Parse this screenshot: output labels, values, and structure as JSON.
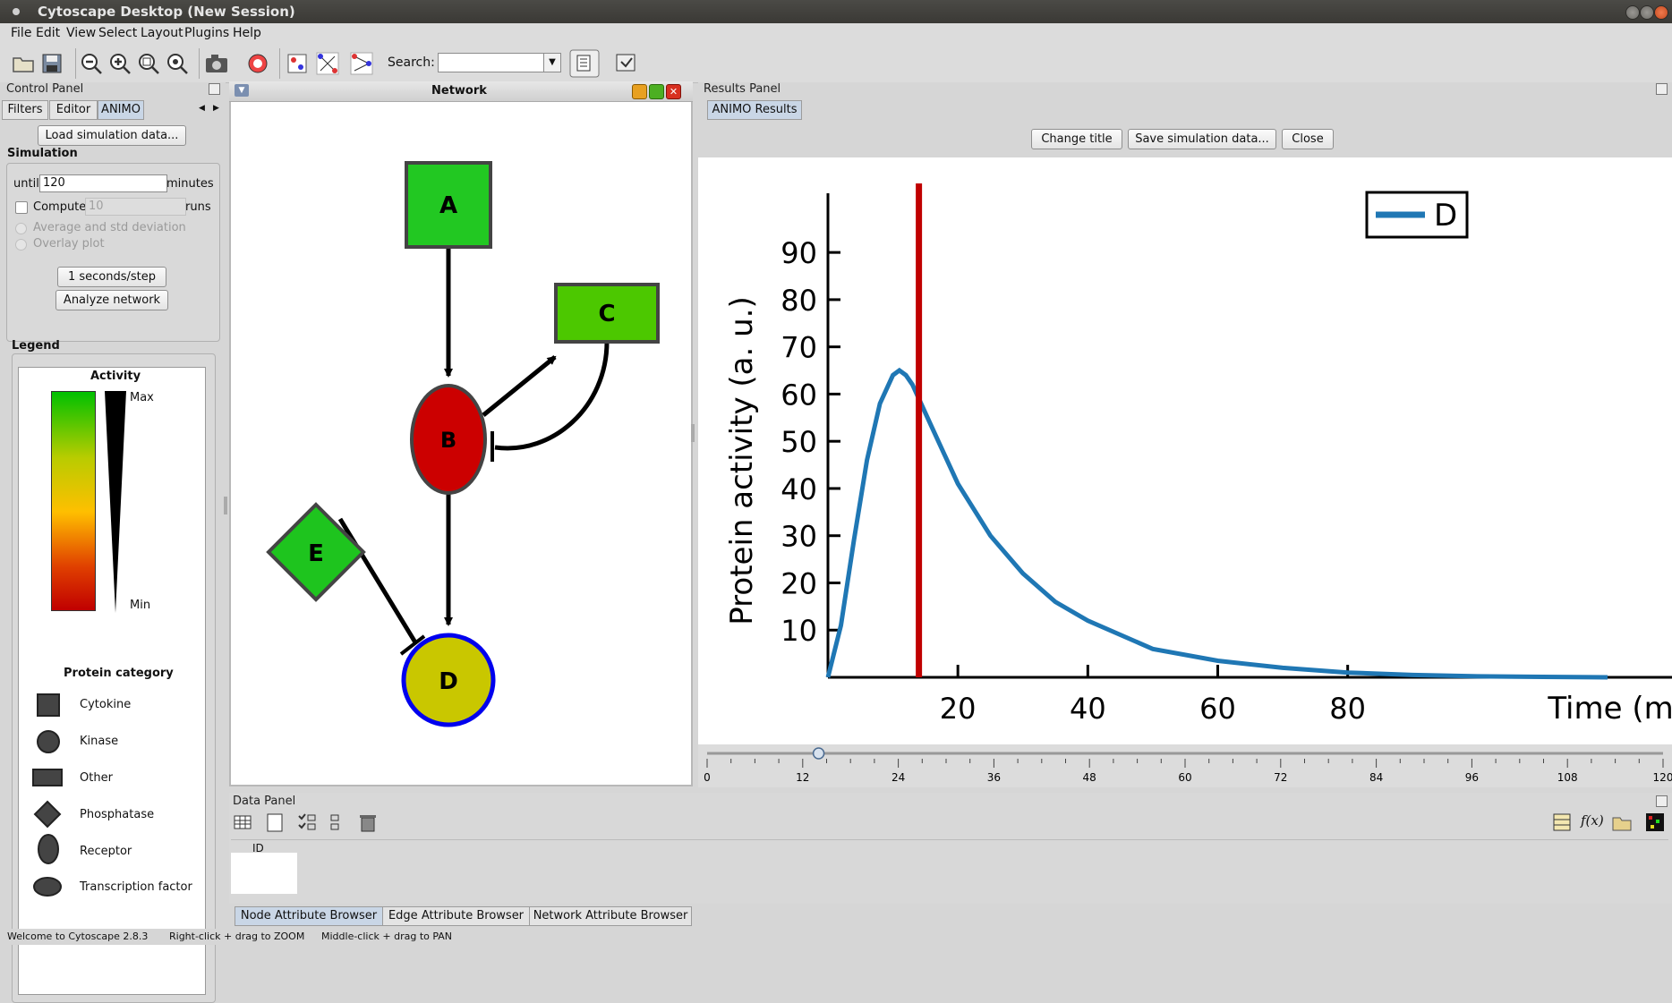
{
  "window": {
    "title": "Cytoscape Desktop (New Session)"
  },
  "menu": {
    "items": [
      "File",
      "Edit",
      "View",
      "Select",
      "Layout",
      "Plugins",
      "Help"
    ]
  },
  "toolbar": {
    "search_label": "Search:",
    "search_value": ""
  },
  "control_panel": {
    "title": "Control Panel",
    "tabs": [
      "Filters",
      "Editor",
      "ANIMO"
    ],
    "selected_tab": "ANIMO",
    "load_button": "Load simulation data...",
    "simulation_heading": "Simulation",
    "until_label": "until",
    "until_value": "120",
    "minutes_label": "minutes",
    "compute_label": "Compute",
    "compute_value": "10",
    "runs_label": "runs",
    "avg_label": "Average and std deviation",
    "overlay_label": "Overlay plot",
    "step_button": "1 seconds/step",
    "analyze_button": "Analyze network",
    "legend_heading": "Legend",
    "legend": {
      "activity_title": "Activity",
      "max_label": "Max",
      "min_label": "Min",
      "category_title": "Protein category",
      "categories": [
        "Cytokine",
        "Kinase",
        "Other",
        "Phosphatase",
        "Receptor",
        "Transcription factor"
      ]
    }
  },
  "network": {
    "title": "Network",
    "nodes": [
      {
        "id": "A",
        "shape": "square",
        "color": "#22c822"
      },
      {
        "id": "B",
        "shape": "ellipse",
        "color": "#cc0000"
      },
      {
        "id": "C",
        "shape": "rectangle",
        "color": "#4cc800"
      },
      {
        "id": "D",
        "shape": "circle",
        "color": "#c9c700",
        "border": "#0000ee"
      },
      {
        "id": "E",
        "shape": "diamond",
        "color": "#1ec41e"
      }
    ]
  },
  "results_panel": {
    "title": "Results Panel",
    "tab": "ANIMO Results",
    "change_title_button": "Change title",
    "save_button": "Save simulation data...",
    "close_button": "Close"
  },
  "chart_data": {
    "type": "line",
    "ylabel": "Protein activity (a. u.)",
    "xlabel": "Time (min)",
    "xlim": [
      0,
      120
    ],
    "ylim": [
      0,
      105
    ],
    "x_ticks": [
      20,
      40,
      60,
      80
    ],
    "y_ticks": [
      10,
      20,
      30,
      40,
      50,
      60,
      70,
      80,
      90
    ],
    "series": [
      {
        "name": "D",
        "color": "#1f77b4",
        "x": [
          0,
          2,
          4,
          6,
          8,
          10,
          11,
          12,
          13,
          14,
          16,
          18,
          20,
          25,
          30,
          35,
          40,
          50,
          60,
          70,
          80,
          90,
          100,
          110,
          120
        ],
        "y": [
          0,
          11,
          29,
          46,
          58,
          64,
          65,
          64,
          62,
          59,
          53,
          47,
          41,
          30,
          22,
          16,
          12,
          6,
          3.5,
          2,
          1,
          0.5,
          0.2,
          0.1,
          0
        ]
      }
    ],
    "marker_line": {
      "x": 14,
      "color": "#c00000"
    },
    "legend_position": "top-right",
    "slider": {
      "value": 14,
      "ticks": [
        "0",
        "12",
        "24",
        "36",
        "48",
        "60",
        "72",
        "84",
        "96",
        "108",
        "120"
      ]
    }
  },
  "data_panel": {
    "title": "Data Panel",
    "column_header": "ID",
    "tabs": [
      "Node Attribute Browser",
      "Edge Attribute Browser",
      "Network Attribute Browser"
    ]
  },
  "status": {
    "welcome": "Welcome to Cytoscape 2.8.3",
    "hint1": "Right-click + drag to ZOOM",
    "hint2": "Middle-click + drag to PAN"
  },
  "colors": {
    "accent": "#c9d6e6",
    "marker": "#c00000",
    "series": "#1f77b4"
  }
}
